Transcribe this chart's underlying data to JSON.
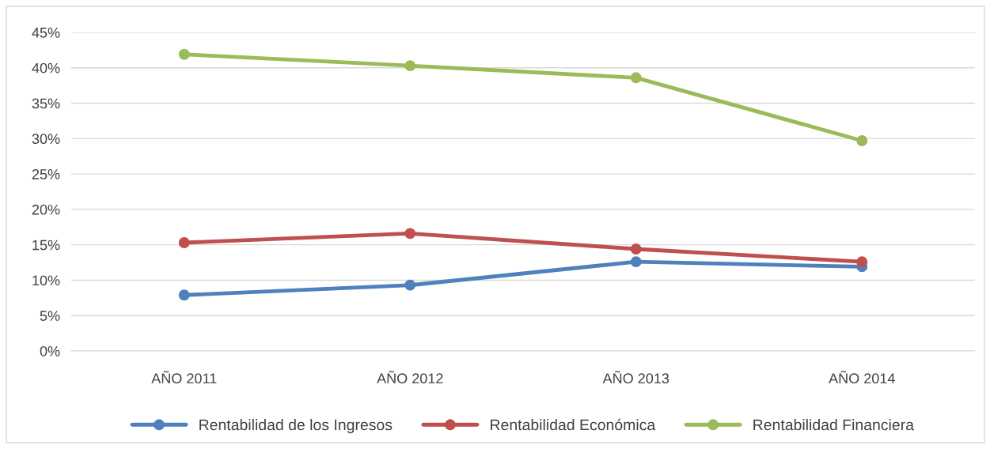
{
  "chart_data": {
    "type": "line",
    "categories": [
      "AÑO 2011",
      "AÑO 2012",
      "AÑO 2013",
      "AÑO 2014"
    ],
    "series": [
      {
        "name": "Rentabilidad de los Ingresos",
        "color": "#4f81bd",
        "values": [
          7.9,
          9.3,
          12.6,
          11.9
        ]
      },
      {
        "name": "Rentabilidad Económica",
        "color": "#c0504d",
        "values": [
          15.3,
          16.6,
          14.4,
          12.6
        ]
      },
      {
        "name": "Rentabilidad Financiera",
        "color": "#9bbb59",
        "values": [
          41.9,
          40.3,
          38.6,
          29.7
        ]
      }
    ],
    "ylim": [
      0,
      45
    ],
    "yticks": [
      {
        "value": 0,
        "label": "0%"
      },
      {
        "value": 5,
        "label": "5%"
      },
      {
        "value": 10,
        "label": "10%"
      },
      {
        "value": 15,
        "label": "15%"
      },
      {
        "value": 20,
        "label": "20%"
      },
      {
        "value": 25,
        "label": "25%"
      },
      {
        "value": 30,
        "label": "30%"
      },
      {
        "value": 35,
        "label": "35%"
      },
      {
        "value": 40,
        "label": "40%"
      },
      {
        "value": 45,
        "label": "45%"
      }
    ],
    "grid": "y",
    "legend": "bottom",
    "marker": "circle",
    "line_style": "solid"
  }
}
